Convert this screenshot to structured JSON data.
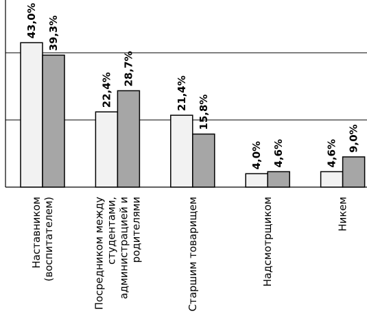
{
  "chart_data": {
    "type": "bar",
    "categories": [
      [
        "Наставником",
        "(воспитателем)"
      ],
      [
        "Посредником между",
        "студентами,",
        "администрацией и",
        "родителями"
      ],
      [
        "Старшим товарищем"
      ],
      [
        "Надсмотрщиком"
      ],
      [
        "Никем"
      ]
    ],
    "series": [
      {
        "values": [
          43.0,
          22.4,
          21.4,
          4.0,
          4.6
        ],
        "labels": [
          "43,0%",
          "22,4%",
          "21,4%",
          "4,0%",
          "4,6%"
        ],
        "color": "#f2f2f2"
      },
      {
        "values": [
          39.3,
          28.7,
          15.8,
          4.6,
          9.0
        ],
        "labels": [
          "39,3%",
          "28,7%",
          "15,8%",
          "4,6%",
          "9,0%"
        ],
        "color": "#a6a6a6"
      }
    ],
    "ylim": [
      0,
      50
    ],
    "grid": true,
    "legend": "none"
  }
}
